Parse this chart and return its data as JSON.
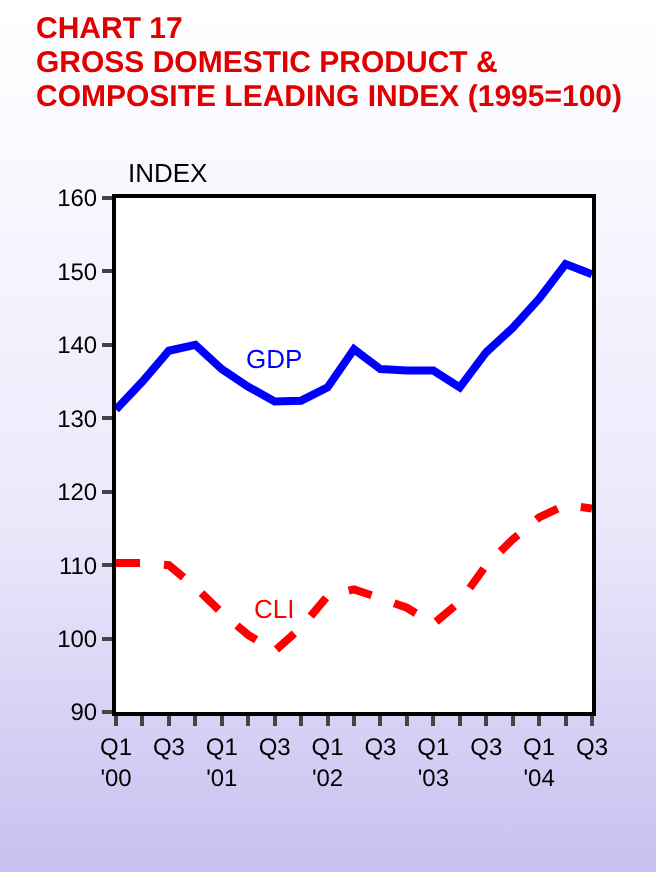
{
  "chart_data": {
    "type": "line",
    "title": "CHART 17",
    "subtitle": "GROSS DOMESTIC PRODUCT & COMPOSITE LEADING INDEX (1995=100)",
    "ylabel": "INDEX",
    "categories": [
      "Q1\n'00",
      null,
      "Q3",
      null,
      "Q1\n'01",
      null,
      "Q3",
      null,
      "Q1\n'02",
      null,
      "Q3",
      null,
      "Q1\n'03",
      null,
      "Q3",
      null,
      "Q1\n'04",
      null,
      "Q3"
    ],
    "series": [
      {
        "name": "GDP",
        "color": "#0000ff",
        "line_style": "solid",
        "values": [
          131.2,
          135,
          139.2,
          140,
          136.7,
          134.3,
          132.3,
          132.4,
          134.2,
          139.4,
          136.7,
          136.5,
          136.5,
          134.2,
          139,
          142.3,
          146.3,
          151,
          149.6
        ]
      },
      {
        "name": "CLI",
        "color": "#ff0000",
        "line_style": "dashed",
        "values": [
          110.3,
          110.3,
          110,
          107,
          103.5,
          100.5,
          98.3,
          101.5,
          105.8,
          106.7,
          105.5,
          104.2,
          102,
          105,
          110,
          113.5,
          116.5,
          118.2,
          117.7
        ]
      }
    ],
    "ylim": [
      90,
      160
    ],
    "yticks": [
      90,
      100,
      110,
      120,
      130,
      140,
      150,
      160
    ],
    "grid": false,
    "legend": false,
    "marker": "none"
  }
}
